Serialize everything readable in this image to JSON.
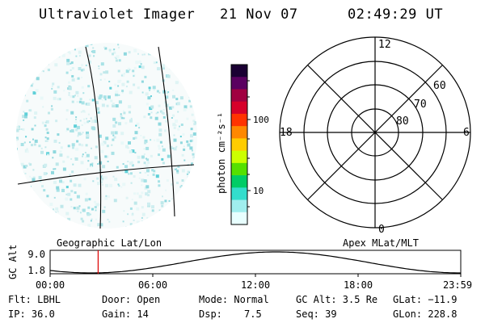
{
  "header": {
    "instrument": "Ultraviolet Imager",
    "date": "21 Nov 07",
    "time": "02:49:29 UT"
  },
  "left_panel": {
    "label": "Geographic Lat/Lon"
  },
  "colorbar": {
    "unit_label": "photon cm⁻²s⁻¹",
    "tick_labels": [
      "10",
      "100"
    ],
    "colors_top_to_bottom": [
      "#1a0033",
      "#5a0060",
      "#a00040",
      "#d6002a",
      "#ff3300",
      "#ff8800",
      "#ffcc00",
      "#ccff00",
      "#55e000",
      "#00cc66",
      "#33ddcc",
      "#a0eeee",
      "#e8ffff"
    ]
  },
  "polar_plot": {
    "label": "Apex MLat/MLT",
    "mlt_labels": {
      "top": "12",
      "left": "18",
      "right": "6",
      "bottom": "0"
    },
    "mlat_labels": [
      "60",
      "70",
      "80"
    ]
  },
  "timeline": {
    "ylabel": "GC Alt",
    "y_ticks": [
      "9.0",
      "1.8"
    ],
    "x_ticks": [
      "00:00",
      "06:00",
      "12:00",
      "18:00",
      "23:59"
    ],
    "current_time_marker_fraction": 0.117
  },
  "status": {
    "flt": "Flt: LBHL",
    "door": "Door: Open",
    "mode": "Mode: Normal",
    "gc_alt": "GC Alt: 3.5 Re",
    "glat": "GLat: −11.9",
    "ip": "IP: 36.0",
    "gain": "Gain: 14",
    "dsp_label": "Dsp:",
    "dsp_value": "7.5",
    "seq": "Seq: 39",
    "glon": "GLon: 228.8"
  }
}
